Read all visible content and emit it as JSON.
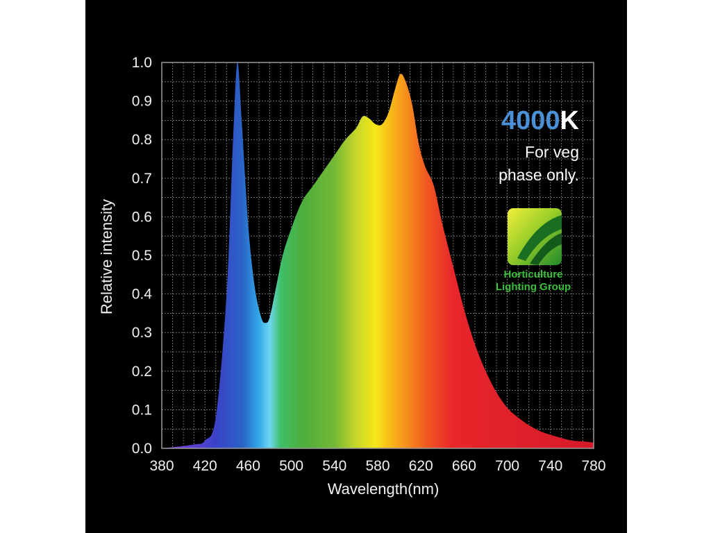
{
  "chart_data": {
    "type": "area",
    "title": "",
    "xlabel": "Wavelength(nm)",
    "ylabel": "Relative intensity",
    "xlim": [
      380,
      780
    ],
    "ylim": [
      0,
      1.0
    ],
    "grid": true,
    "x_ticks": [
      380,
      420,
      460,
      500,
      540,
      580,
      620,
      660,
      700,
      740,
      780
    ],
    "y_ticks": [
      "0.0",
      "0.1",
      "0.2",
      "0.3",
      "0.4",
      "0.5",
      "0.6",
      "0.7",
      "0.8",
      "0.9",
      "1.0"
    ],
    "series": [
      {
        "points": [
          [
            380,
            0.0
          ],
          [
            410,
            0.01
          ],
          [
            420,
            0.02
          ],
          [
            430,
            0.08
          ],
          [
            440,
            0.4
          ],
          [
            446,
            0.8
          ],
          [
            450,
            1.0
          ],
          [
            454,
            0.85
          ],
          [
            460,
            0.58
          ],
          [
            466,
            0.42
          ],
          [
            472,
            0.34
          ],
          [
            476,
            0.325
          ],
          [
            480,
            0.34
          ],
          [
            486,
            0.42
          ],
          [
            492,
            0.5
          ],
          [
            500,
            0.57
          ],
          [
            510,
            0.64
          ],
          [
            520,
            0.68
          ],
          [
            530,
            0.72
          ],
          [
            540,
            0.76
          ],
          [
            550,
            0.8
          ],
          [
            560,
            0.83
          ],
          [
            566,
            0.86
          ],
          [
            572,
            0.855
          ],
          [
            578,
            0.84
          ],
          [
            584,
            0.84
          ],
          [
            590,
            0.87
          ],
          [
            596,
            0.93
          ],
          [
            601,
            0.97
          ],
          [
            606,
            0.95
          ],
          [
            612,
            0.89
          ],
          [
            618,
            0.79
          ],
          [
            624,
            0.73
          ],
          [
            632,
            0.68
          ],
          [
            640,
            0.58
          ],
          [
            650,
            0.47
          ],
          [
            660,
            0.36
          ],
          [
            670,
            0.27
          ],
          [
            680,
            0.2
          ],
          [
            690,
            0.145
          ],
          [
            700,
            0.105
          ],
          [
            710,
            0.08
          ],
          [
            720,
            0.06
          ],
          [
            730,
            0.045
          ],
          [
            740,
            0.035
          ],
          [
            750,
            0.027
          ],
          [
            760,
            0.02
          ],
          [
            770,
            0.018
          ],
          [
            780,
            0.015
          ]
        ]
      }
    ],
    "gradient_stops": [
      {
        "x": 380,
        "color": "#8a3fd6"
      },
      {
        "x": 430,
        "color": "#3a42c8"
      },
      {
        "x": 455,
        "color": "#2a64c6"
      },
      {
        "x": 470,
        "color": "#32a9e9"
      },
      {
        "x": 480,
        "color": "#6fd6f0"
      },
      {
        "x": 490,
        "color": "#3fbf6a"
      },
      {
        "x": 510,
        "color": "#4cae3c"
      },
      {
        "x": 540,
        "color": "#74b836"
      },
      {
        "x": 560,
        "color": "#c7d62a"
      },
      {
        "x": 578,
        "color": "#f5e81a"
      },
      {
        "x": 588,
        "color": "#f7c619"
      },
      {
        "x": 605,
        "color": "#f7931c"
      },
      {
        "x": 625,
        "color": "#f05a22"
      },
      {
        "x": 650,
        "color": "#e8262b"
      },
      {
        "x": 780,
        "color": "#d51a28"
      }
    ],
    "annotations": {
      "cct_number": "4000",
      "cct_unit": "K",
      "note_line1": "For veg",
      "note_line2": "phase only."
    },
    "colors": {
      "cct_number": "#4a90d6",
      "cct_unit": "#ffffff",
      "grid": "#8a8a8a",
      "frame_background": "#000000"
    }
  },
  "logo": {
    "line1": "Horticulture",
    "line2": "Lighting Group"
  }
}
